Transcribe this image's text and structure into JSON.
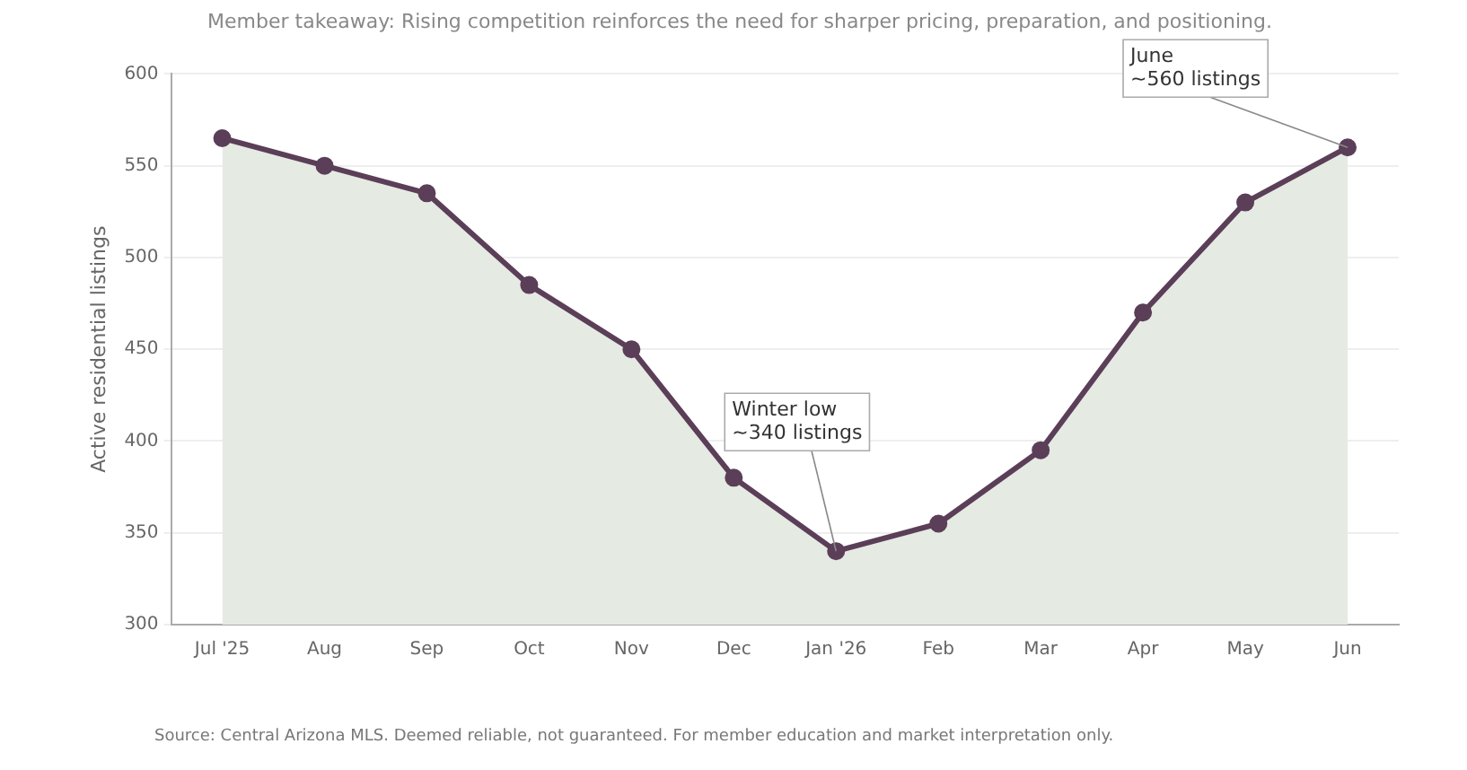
{
  "chart_data": {
    "type": "area",
    "subtitle": "Member takeaway: Rising competition reinforces the need for sharper pricing, preparation, and positioning.",
    "ylabel": "Active residential listings",
    "categories": [
      "Jul '25",
      "Aug",
      "Sep",
      "Oct",
      "Nov",
      "Dec",
      "Jan '26",
      "Feb",
      "Mar",
      "Apr",
      "May",
      "Jun"
    ],
    "series": [
      {
        "color": "#5b3e57",
        "values": [
          565,
          550,
          535,
          485,
          450,
          380,
          340,
          355,
          395,
          470,
          530,
          560
        ]
      }
    ],
    "ylim": [
      300,
      600
    ],
    "yticks": [
      300,
      350,
      400,
      450,
      500,
      550,
      600
    ],
    "grid": "y",
    "legend": false,
    "marker": "circle",
    "line_style": "solid",
    "annotations": [
      {
        "text": "Winter low\n~340 listings",
        "x": "Jan '26",
        "y": 340
      },
      {
        "text": "June\n~560 listings",
        "x": "Jun",
        "y": 560
      },
      "Source: Central Arizona MLS. Deemed reliable, not guaranteed. For member education and market interpretation only."
    ]
  }
}
